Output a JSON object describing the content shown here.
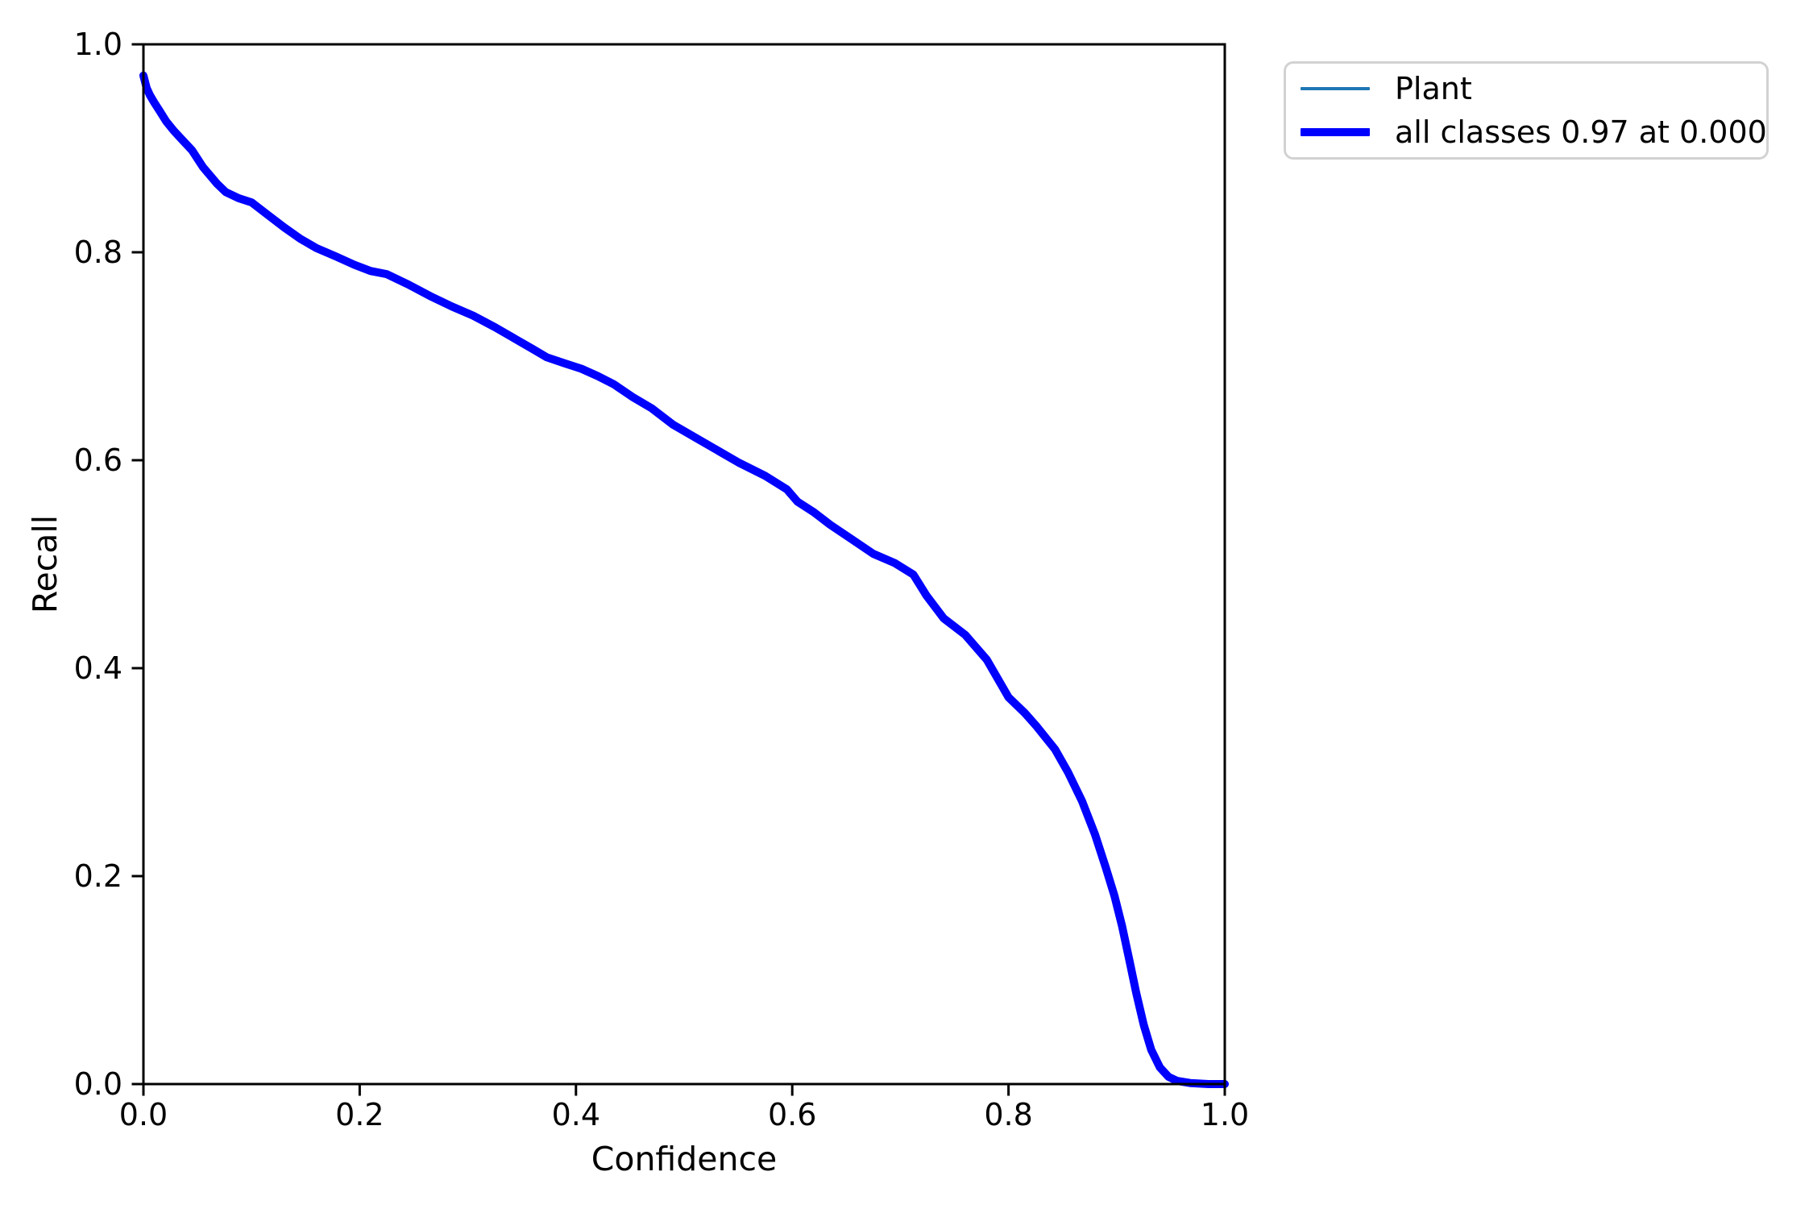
{
  "chart_data": {
    "type": "line",
    "title": "",
    "xlabel": "Confidence",
    "ylabel": "Recall",
    "xlim": [
      0.0,
      1.0
    ],
    "ylim": [
      0.0,
      1.0
    ],
    "xticks": [
      "0.0",
      "0.2",
      "0.4",
      "0.6",
      "0.8",
      "1.0"
    ],
    "yticks": [
      "0.0",
      "0.2",
      "0.4",
      "0.6",
      "0.8",
      "1.0"
    ],
    "grid": false,
    "legend_position": "outside-upper-right",
    "x": [
      0.0,
      0.003,
      0.006,
      0.01,
      0.015,
      0.021,
      0.028,
      0.036,
      0.045,
      0.055,
      0.068,
      0.076,
      0.088,
      0.1,
      0.115,
      0.13,
      0.145,
      0.16,
      0.178,
      0.195,
      0.21,
      0.225,
      0.245,
      0.265,
      0.285,
      0.305,
      0.325,
      0.345,
      0.36,
      0.373,
      0.39,
      0.405,
      0.42,
      0.435,
      0.452,
      0.47,
      0.49,
      0.51,
      0.53,
      0.55,
      0.575,
      0.595,
      0.605,
      0.62,
      0.635,
      0.655,
      0.675,
      0.695,
      0.712,
      0.724,
      0.74,
      0.76,
      0.78,
      0.8,
      0.815,
      0.826,
      0.843,
      0.855,
      0.868,
      0.88,
      0.89,
      0.898,
      0.905,
      0.912,
      0.918,
      0.925,
      0.932,
      0.94,
      0.948,
      0.956,
      0.968,
      0.985,
      1.0
    ],
    "series": [
      {
        "name": "Plant",
        "color": "#1f77b4",
        "linewidth": 4,
        "y": [
          0.97,
          0.958,
          0.951,
          0.944,
          0.936,
          0.926,
          0.917,
          0.908,
          0.898,
          0.882,
          0.866,
          0.858,
          0.852,
          0.848,
          0.836,
          0.824,
          0.813,
          0.804,
          0.796,
          0.788,
          0.782,
          0.779,
          0.769,
          0.758,
          0.748,
          0.739,
          0.728,
          0.716,
          0.707,
          0.699,
          0.693,
          0.688,
          0.681,
          0.673,
          0.661,
          0.65,
          0.634,
          0.622,
          0.61,
          0.598,
          0.585,
          0.572,
          0.56,
          0.55,
          0.538,
          0.524,
          0.51,
          0.501,
          0.49,
          0.47,
          0.448,
          0.432,
          0.408,
          0.372,
          0.357,
          0.344,
          0.322,
          0.3,
          0.272,
          0.24,
          0.208,
          0.181,
          0.152,
          0.118,
          0.088,
          0.057,
          0.033,
          0.016,
          0.007,
          0.003,
          0.001,
          0.0,
          0.0
        ]
      },
      {
        "name": "all classes 0.97 at 0.000",
        "color": "#0000ff",
        "linewidth": 10,
        "y": [
          0.97,
          0.958,
          0.951,
          0.944,
          0.936,
          0.926,
          0.917,
          0.908,
          0.898,
          0.882,
          0.866,
          0.858,
          0.852,
          0.848,
          0.836,
          0.824,
          0.813,
          0.804,
          0.796,
          0.788,
          0.782,
          0.779,
          0.769,
          0.758,
          0.748,
          0.739,
          0.728,
          0.716,
          0.707,
          0.699,
          0.693,
          0.688,
          0.681,
          0.673,
          0.661,
          0.65,
          0.634,
          0.622,
          0.61,
          0.598,
          0.585,
          0.572,
          0.56,
          0.55,
          0.538,
          0.524,
          0.51,
          0.501,
          0.49,
          0.47,
          0.448,
          0.432,
          0.408,
          0.372,
          0.357,
          0.344,
          0.322,
          0.3,
          0.272,
          0.24,
          0.208,
          0.181,
          0.152,
          0.118,
          0.088,
          0.057,
          0.033,
          0.016,
          0.007,
          0.003,
          0.001,
          0.0,
          0.0
        ]
      }
    ],
    "annotation": {
      "max_recall": "0.97",
      "at_confidence": "0.000"
    }
  },
  "legend": {
    "items": [
      {
        "label": "Plant",
        "color": "#1f77b4",
        "linewidth": 4
      },
      {
        "label": "all classes 0.97 at 0.000",
        "color": "#0000ff",
        "linewidth": 10
      }
    ]
  },
  "colors": {
    "spine": "#000000",
    "text": "#000000",
    "plant_line": "#1f77b4",
    "all_classes_line": "#0000ff",
    "legend_border": "#d2d2d2",
    "background": "#ffffff"
  }
}
